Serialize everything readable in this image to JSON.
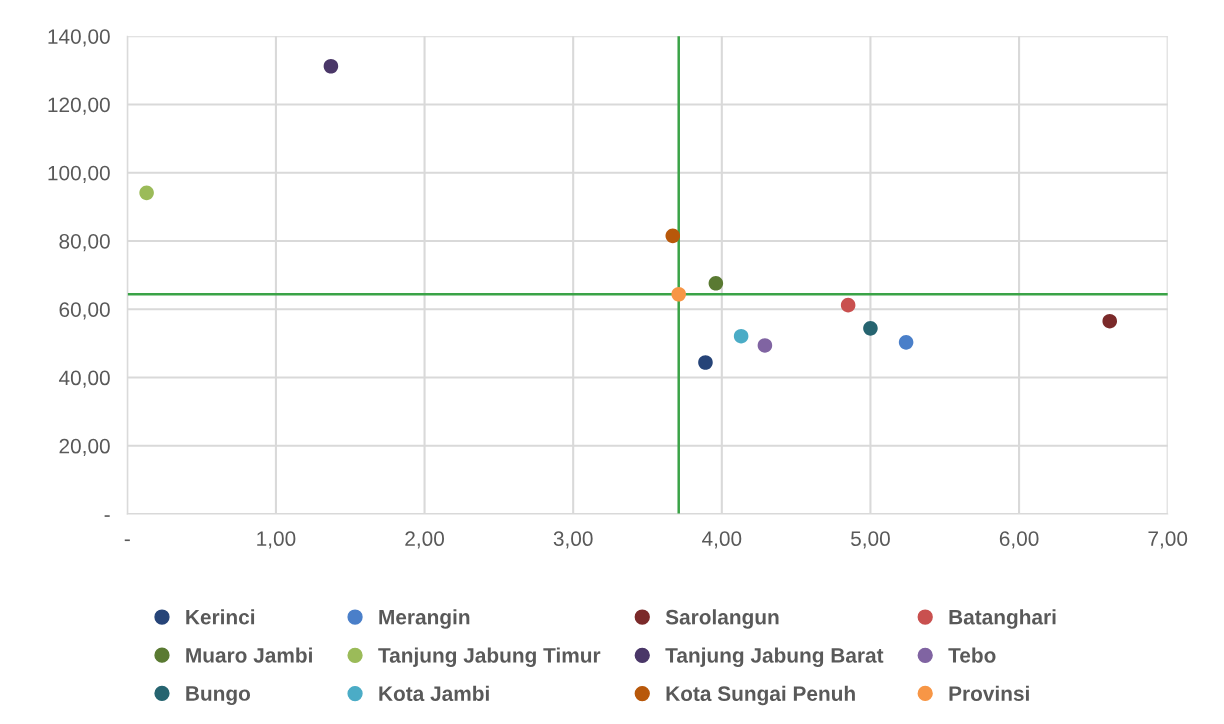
{
  "chart_data": {
    "type": "scatter",
    "marker": "circle",
    "grid": true,
    "legend": "bottom",
    "xlim": [
      0,
      7
    ],
    "ylim": [
      0,
      140
    ],
    "xticks": [
      {
        "value": 0,
        "label": "-"
      },
      {
        "value": 1,
        "label": "1,00"
      },
      {
        "value": 2,
        "label": "2,00"
      },
      {
        "value": 3,
        "label": "3,00"
      },
      {
        "value": 4,
        "label": "4,00"
      },
      {
        "value": 5,
        "label": "5,00"
      },
      {
        "value": 6,
        "label": "6,00"
      },
      {
        "value": 7,
        "label": "7,00"
      }
    ],
    "yticks": [
      {
        "value": 0,
        "label": "-"
      },
      {
        "value": 20,
        "label": "20,00"
      },
      {
        "value": 40,
        "label": "40,00"
      },
      {
        "value": 60,
        "label": "60,00"
      },
      {
        "value": 80,
        "label": "80,00"
      },
      {
        "value": 100,
        "label": "100,00"
      },
      {
        "value": 120,
        "label": "120,00"
      },
      {
        "value": 140,
        "label": "140,00"
      }
    ],
    "ref_lines": [
      {
        "axis": "x",
        "value": 3.71,
        "color": "#3aa347"
      },
      {
        "axis": "y",
        "value": 64.4,
        "color": "#3aa347"
      }
    ],
    "series": [
      {
        "name": "Kerinci",
        "color": "#264478",
        "x": [
          3.89
        ],
        "values": [
          44.4
        ]
      },
      {
        "name": "Merangin",
        "color": "#4a7fc9",
        "x": [
          5.24
        ],
        "values": [
          50.3
        ]
      },
      {
        "name": "Sarolangun",
        "color": "#7b2a2a",
        "x": [
          6.61
        ],
        "values": [
          56.5
        ]
      },
      {
        "name": "Batanghari",
        "color": "#c9504f",
        "x": [
          4.85
        ],
        "values": [
          61.2
        ]
      },
      {
        "name": "Muaro Jambi",
        "color": "#5a7a32",
        "x": [
          3.96
        ],
        "values": [
          67.6
        ]
      },
      {
        "name": "Tanjung Jabung Timur",
        "color": "#9bbb59",
        "x": [
          0.13
        ],
        "values": [
          94.1
        ]
      },
      {
        "name": "Tanjung Jabung Barat",
        "color": "#4a3768",
        "x": [
          1.37
        ],
        "values": [
          131.2
        ]
      },
      {
        "name": "Tebo",
        "color": "#8064a2",
        "x": [
          4.29
        ],
        "values": [
          49.4
        ]
      },
      {
        "name": "Bungo",
        "color": "#266470",
        "x": [
          5.0
        ],
        "values": [
          54.4
        ]
      },
      {
        "name": "Kota Jambi",
        "color": "#4bacc6",
        "x": [
          4.13
        ],
        "values": [
          52.1
        ]
      },
      {
        "name": "Kota Sungai Penuh",
        "color": "#b8580a",
        "x": [
          3.67
        ],
        "values": [
          81.5
        ]
      },
      {
        "name": "Provinsi",
        "color": "#f79646",
        "x": [
          3.71
        ],
        "values": [
          64.4
        ]
      }
    ]
  }
}
